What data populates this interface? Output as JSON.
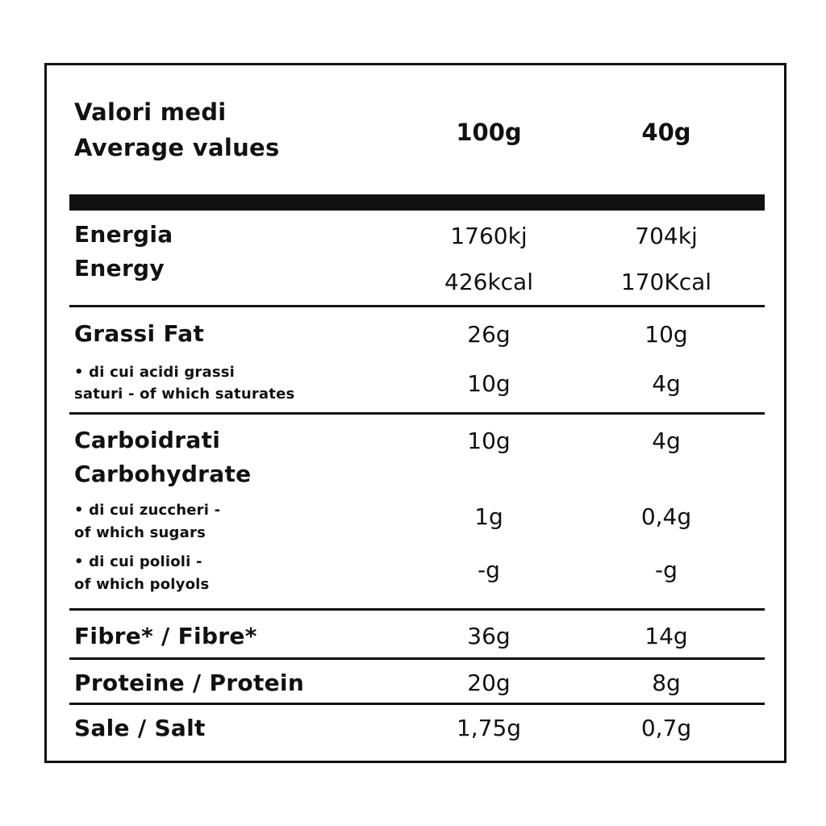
{
  "header": {
    "title_it": "Valori medi",
    "title_en": "Average values",
    "col_100g": "100g",
    "col_40g": "40g"
  },
  "rows": {
    "energy": {
      "label_it": "Energia",
      "label_en": "Energy",
      "kj_100g": "1760kj",
      "kj_40g": "704kj",
      "kcal_100g": "426kcal",
      "kcal_40g": "170Kcal"
    },
    "fat": {
      "label": "Grassi Fat",
      "val_100g": "26g",
      "val_40g": "10g"
    },
    "saturates": {
      "label_line1": "• di cui acidi grassi",
      "label_line2": "saturi - of which saturates",
      "val_100g": "10g",
      "val_40g": "4g"
    },
    "carbohydrate": {
      "label_it": "Carboidrati",
      "label_en": "Carbohydrate",
      "val_100g": "10g",
      "val_40g": "4g"
    },
    "sugars": {
      "label_line1": "• di cui zuccheri -",
      "label_line2": "of which sugars",
      "val_100g": "1g",
      "val_40g": "0,4g"
    },
    "polyols": {
      "label_line1": "• di cui polioli -",
      "label_line2": "of which polyols",
      "val_100g": "-g",
      "val_40g": "-g"
    },
    "fibre": {
      "label": "Fibre* / Fibre*",
      "val_100g": "36g",
      "val_40g": "14g"
    },
    "protein": {
      "label": "Proteine / Protein",
      "val_100g": "20g",
      "val_40g": "8g"
    },
    "salt": {
      "label": "Sale / Salt",
      "val_100g": "1,75g",
      "val_40g": "0,7g"
    }
  },
  "colors": {
    "ink": "#111111",
    "background": "#ffffff"
  }
}
